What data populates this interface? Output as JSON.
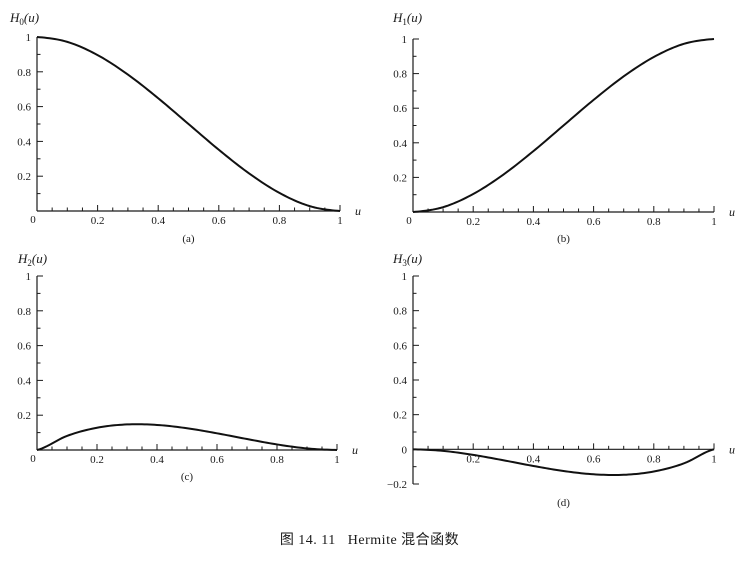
{
  "figure": {
    "caption_prefix": "图 14. 11",
    "caption_text": "Hermite 混合函数"
  },
  "chart_data": [
    {
      "type": "line",
      "panel": "(a)",
      "ylabel": "H0(u)",
      "ylabel_main": "H",
      "ylabel_sub": "0",
      "ylabel_arg": "(u)",
      "xlabel": "u",
      "xlim": [
        0,
        1
      ],
      "ylim": [
        0,
        1
      ],
      "xticks": [
        "0",
        "0.2",
        "0.4",
        "0.6",
        "0.8",
        "1"
      ],
      "yticks": [
        "0.2",
        "0.4",
        "0.6",
        "0.8",
        "1"
      ],
      "series": [
        {
          "x": [
            0,
            0.1,
            0.2,
            0.3,
            0.4,
            0.5,
            0.6,
            0.7,
            0.8,
            0.9,
            1
          ],
          "y": [
            1,
            0.972,
            0.896,
            0.784,
            0.648,
            0.5,
            0.352,
            0.216,
            0.104,
            0.028,
            0
          ]
        }
      ],
      "grid": false
    },
    {
      "type": "line",
      "panel": "(b)",
      "ylabel": "H1(u)",
      "ylabel_main": "H",
      "ylabel_sub": "1",
      "ylabel_arg": "(u)",
      "xlabel": "u",
      "xlim": [
        0,
        1
      ],
      "ylim": [
        0,
        1
      ],
      "xticks": [
        "0",
        "0.2",
        "0.4",
        "0.6",
        "0.8",
        "1"
      ],
      "yticks": [
        "0.2",
        "0.4",
        "0.6",
        "0.8",
        "1"
      ],
      "series": [
        {
          "x": [
            0,
            0.1,
            0.2,
            0.3,
            0.4,
            0.5,
            0.6,
            0.7,
            0.8,
            0.9,
            1
          ],
          "y": [
            0,
            0.028,
            0.104,
            0.216,
            0.352,
            0.5,
            0.648,
            0.784,
            0.896,
            0.972,
            1
          ]
        }
      ],
      "grid": false
    },
    {
      "type": "line",
      "panel": "(c)",
      "ylabel": "H2(u)",
      "ylabel_main": "H",
      "ylabel_sub": "2",
      "ylabel_arg": "(u)",
      "xlabel": "u",
      "xlim": [
        0,
        1
      ],
      "ylim": [
        0,
        1
      ],
      "xticks": [
        "0",
        "0.2",
        "0.4",
        "0.6",
        "0.8",
        "1"
      ],
      "yticks": [
        "0.2",
        "0.4",
        "0.6",
        "0.8",
        "1"
      ],
      "series": [
        {
          "x": [
            0,
            0.1,
            0.2,
            0.3,
            0.4,
            0.5,
            0.6,
            0.7,
            0.8,
            0.9,
            1
          ],
          "y": [
            0,
            0.081,
            0.128,
            0.147,
            0.144,
            0.125,
            0.096,
            0.063,
            0.032,
            0.009,
            0
          ]
        }
      ],
      "grid": false
    },
    {
      "type": "line",
      "panel": "(d)",
      "ylabel": "H3(u)",
      "ylabel_main": "H",
      "ylabel_sub": "3",
      "ylabel_arg": "(u)",
      "xlabel": "u",
      "xlim": [
        0,
        1
      ],
      "ylim": [
        -0.2,
        1
      ],
      "xticks": [
        "0.2",
        "0.4",
        "0.6",
        "0.8",
        "1"
      ],
      "yticks": [
        "-0.2",
        "0",
        "0.2",
        "0.4",
        "0.6",
        "0.8",
        "1"
      ],
      "series": [
        {
          "x": [
            0,
            0.1,
            0.2,
            0.3,
            0.4,
            0.5,
            0.6,
            0.7,
            0.8,
            0.9,
            1
          ],
          "y": [
            0,
            -0.009,
            -0.032,
            -0.063,
            -0.096,
            -0.125,
            -0.144,
            -0.147,
            -0.128,
            -0.081,
            0
          ]
        }
      ],
      "grid": false
    }
  ]
}
